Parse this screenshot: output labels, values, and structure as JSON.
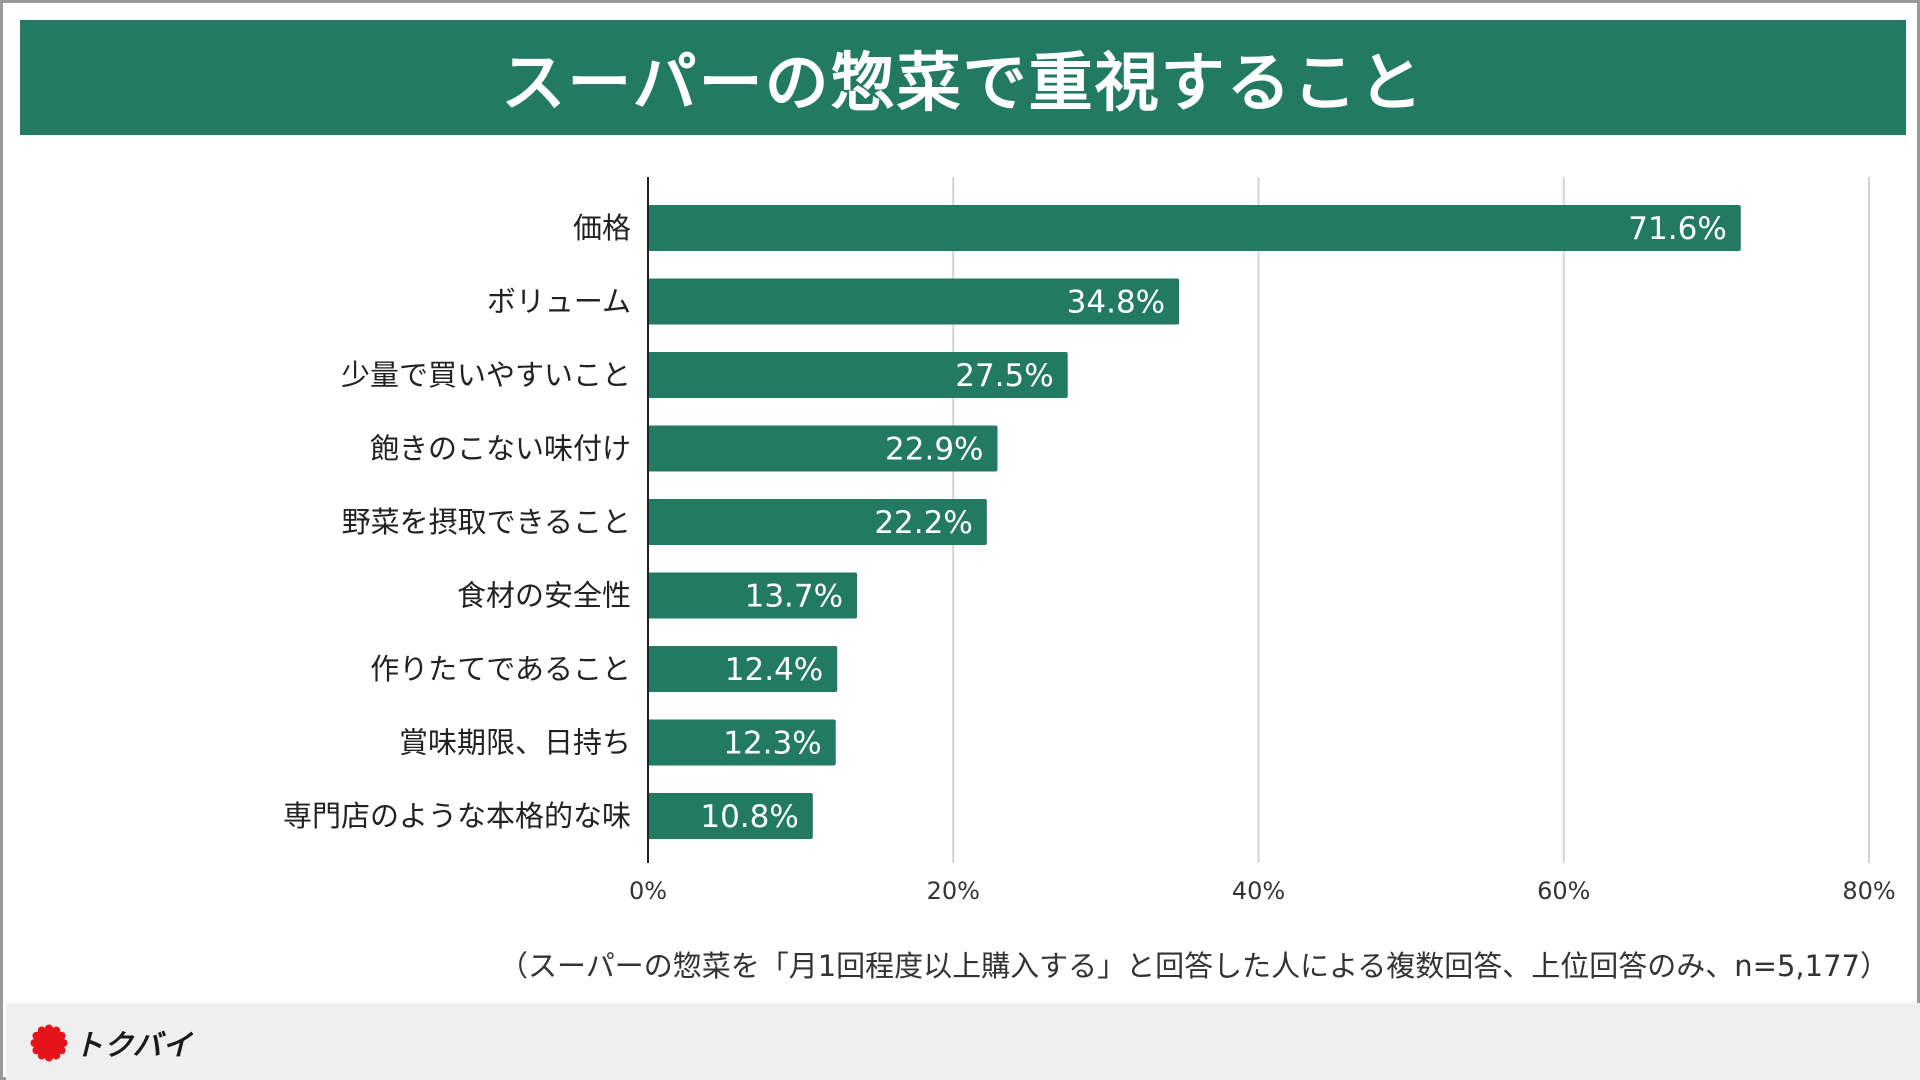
{
  "title": "スーパーの惣菜で重視すること",
  "footnote": "（スーパーの惣菜を「月1回程度以上購入する」と回答した人による複数回答、上位回答のみ、n=5,177）",
  "brand": {
    "name": "トクバイ",
    "color": "#e5141b"
  },
  "colors": {
    "bar": "#227a62",
    "header": "#227a62",
    "grid": "#d4d4d4",
    "axis": "#222222"
  },
  "chart_data": {
    "type": "bar",
    "orientation": "horizontal",
    "title": "スーパーの惣菜で重視すること",
    "categories": [
      "価格",
      "ボリューム",
      "少量で買いやすいこと",
      "飽きのこない味付け",
      "野菜を摂取できること",
      "食材の安全性",
      "作りたてであること",
      "賞味期限、日持ち",
      "専門店のような本格的な味"
    ],
    "values": [
      71.6,
      34.8,
      27.5,
      22.9,
      22.2,
      13.7,
      12.4,
      12.3,
      10.8
    ],
    "value_labels": [
      "71.6%",
      "34.8%",
      "27.5%",
      "22.9%",
      "22.2%",
      "13.7%",
      "12.4%",
      "12.3%",
      "10.8%"
    ],
    "xlim": [
      0,
      80
    ],
    "xticks": [
      0,
      20,
      40,
      60,
      80
    ],
    "xtick_labels": [
      "0%",
      "20%",
      "40%",
      "60%",
      "80%"
    ],
    "grid": true,
    "xlabel": "",
    "ylabel": ""
  }
}
